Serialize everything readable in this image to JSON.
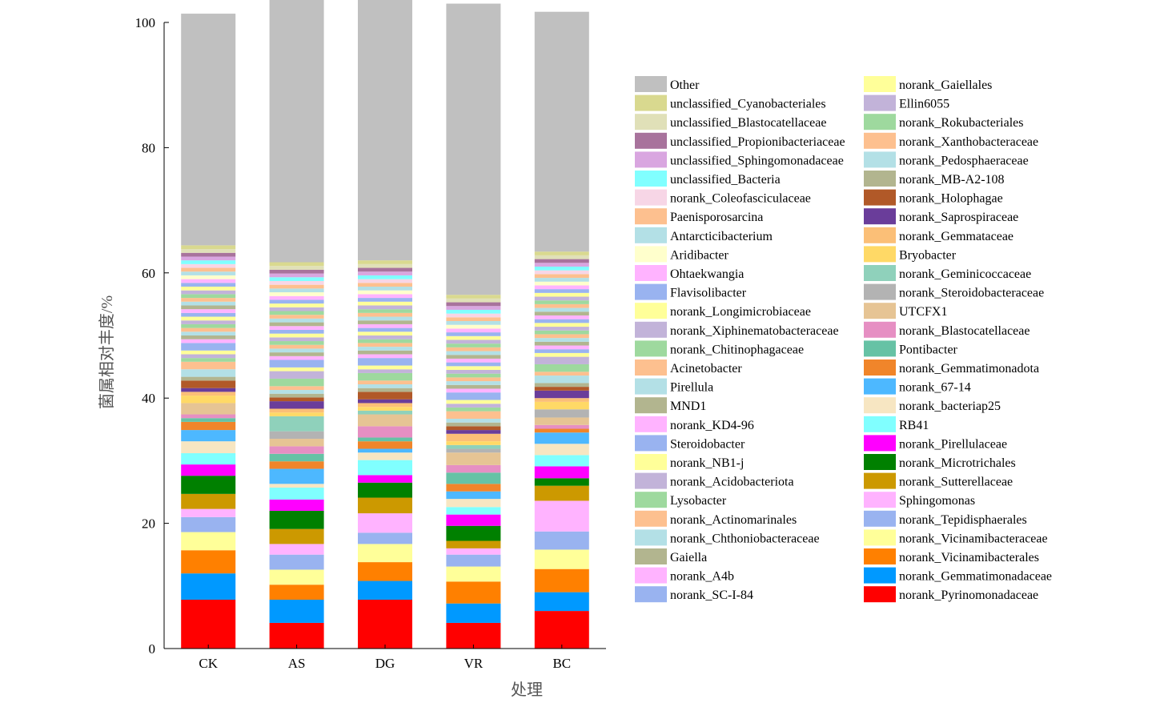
{
  "chart_data": {
    "type": "bar",
    "stacked": true,
    "xlabel": "处理",
    "ylabel": "菌属相对丰度/%",
    "ylim": [
      0,
      100
    ],
    "yticks": [
      0,
      20,
      40,
      60,
      80,
      100
    ],
    "categories": [
      "CK",
      "AS",
      "DG",
      "VR",
      "BC"
    ],
    "legend_position": "right",
    "series": [
      {
        "name": "norank_Pyrinomonadaceae",
        "color": "#ff0000",
        "values": [
          7.8,
          4.1,
          7.8,
          4.1,
          6.0
        ]
      },
      {
        "name": "norank_Gemmatimonadaceae",
        "color": "#0099ff",
        "values": [
          4.2,
          3.7,
          3.0,
          3.1,
          3.0
        ]
      },
      {
        "name": "norank_Vicinamibacterales",
        "color": "#ff8000",
        "values": [
          3.7,
          2.4,
          3.0,
          3.5,
          3.7
        ]
      },
      {
        "name": "norank_Vicinamibacteraceae",
        "color": "#ffff99",
        "values": [
          2.9,
          2.4,
          2.9,
          2.4,
          3.1
        ]
      },
      {
        "name": "norank_Tepidisphaerales",
        "color": "#99b3f0",
        "values": [
          2.4,
          2.4,
          1.8,
          1.9,
          2.9
        ]
      },
      {
        "name": "Sphingomonas",
        "color": "#ffb3ff",
        "values": [
          1.3,
          1.7,
          3.1,
          1.0,
          4.9
        ]
      },
      {
        "name": "norank_Sutterellaceae",
        "color": "#cc9900",
        "values": [
          2.4,
          2.4,
          2.5,
          1.2,
          2.4
        ]
      },
      {
        "name": "norank_Microtrichales",
        "color": "#008000",
        "values": [
          2.9,
          2.9,
          2.4,
          2.4,
          1.2
        ]
      },
      {
        "name": "norank_Pirellulaceae",
        "color": "#ff00ff",
        "values": [
          1.8,
          1.8,
          1.2,
          1.8,
          1.9
        ]
      },
      {
        "name": "RB41",
        "color": "#80ffff",
        "values": [
          1.8,
          1.9,
          2.4,
          1.2,
          1.8
        ]
      },
      {
        "name": "norank_bacteriap25",
        "color": "#f7e6c2",
        "values": [
          1.9,
          0.6,
          1.2,
          1.3,
          1.8
        ]
      },
      {
        "name": "norank_67-14",
        "color": "#4db8ff",
        "values": [
          1.8,
          2.4,
          0.6,
          1.2,
          1.8
        ]
      },
      {
        "name": "norank_Gemmatimonadota",
        "color": "#f0852a",
        "values": [
          1.3,
          1.2,
          1.2,
          1.2,
          0.6
        ]
      },
      {
        "name": "Pontibacter",
        "color": "#66c2a5",
        "values": [
          0.6,
          1.2,
          0.6,
          1.8,
          0.0
        ]
      },
      {
        "name": "norank_Blastocatellaceae",
        "color": "#e68fc3",
        "values": [
          0.6,
          1.2,
          1.8,
          1.2,
          0.6
        ]
      },
      {
        "name": "UTCFX1",
        "color": "#e6c494",
        "values": [
          1.8,
          1.2,
          1.9,
          2.0,
          1.2
        ]
      },
      {
        "name": "norank_Steroidobacteraceae",
        "color": "#b3b3b3",
        "values": [
          0.0,
          1.2,
          0.0,
          0.6,
          1.3
        ]
      },
      {
        "name": "norank_Geminicoccaceae",
        "color": "#8fd1bb",
        "values": [
          0.0,
          2.4,
          0.6,
          0.6,
          0.0
        ]
      },
      {
        "name": "Bryobacter",
        "color": "#ffd966",
        "values": [
          1.2,
          0.6,
          0.6,
          0.6,
          1.2
        ]
      },
      {
        "name": "norank_Gemmataceae",
        "color": "#fbbf77",
        "values": [
          0.6,
          0.6,
          0.6,
          1.2,
          0.6
        ]
      },
      {
        "name": "norank_Saprospiraceae",
        "color": "#6a3d9a",
        "values": [
          0.6,
          1.2,
          0.6,
          0.6,
          1.2
        ]
      },
      {
        "name": "norank_Holophagae",
        "color": "#b15928",
        "values": [
          1.2,
          0.6,
          1.2,
          0.6,
          0.6
        ]
      },
      {
        "name": "norank_MB-A2-108",
        "color": "#b2b58f",
        "values": [
          0.6,
          0.6,
          0.6,
          0.6,
          0.6
        ]
      },
      {
        "name": "norank_Pedosphaeraceae",
        "color": "#b3e0e6",
        "values": [
          1.2,
          0.6,
          0.6,
          0.6,
          1.2
        ]
      },
      {
        "name": "norank_Xanthobacteraceae",
        "color": "#fdc08f",
        "values": [
          1.2,
          0.6,
          0.6,
          1.2,
          0.6
        ]
      },
      {
        "name": "norank_Rokubacteriales",
        "color": "#9ed99e",
        "values": [
          0.6,
          1.2,
          1.2,
          0.6,
          1.2
        ]
      },
      {
        "name": "Ellin6055",
        "color": "#c2b3d9",
        "values": [
          0.6,
          1.2,
          0.6,
          0.6,
          1.2
        ]
      },
      {
        "name": "norank_Gaiellales",
        "color": "#ffff99",
        "values": [
          0.6,
          0.6,
          0.6,
          0.6,
          0.6
        ]
      },
      {
        "name": "norank_SC-I-84",
        "color": "#99b3f0",
        "values": [
          1.2,
          1.2,
          1.2,
          1.2,
          0.6
        ]
      },
      {
        "name": "norank_A4b",
        "color": "#ffb3ff",
        "values": [
          0.6,
          0.6,
          0.6,
          0.6,
          0.6
        ]
      },
      {
        "name": "Gaiella",
        "color": "#b2b58f",
        "values": [
          0.6,
          0.6,
          0.6,
          0.6,
          0.6
        ]
      },
      {
        "name": "norank_Chthoniobacteraceae",
        "color": "#b3e0e6",
        "values": [
          0.6,
          0.6,
          0.6,
          0.6,
          0.6
        ]
      },
      {
        "name": "norank_Actinomarinales",
        "color": "#fdc08f",
        "values": [
          0.6,
          0.6,
          0.6,
          0.6,
          0.6
        ]
      },
      {
        "name": "Lysobacter",
        "color": "#9ed99e",
        "values": [
          0.6,
          0.6,
          0.6,
          0.6,
          0.6
        ]
      },
      {
        "name": "norank_Acidobacteriota",
        "color": "#c2b3d9",
        "values": [
          0.6,
          0.6,
          0.6,
          0.6,
          0.6
        ]
      },
      {
        "name": "norank_NB1-j",
        "color": "#ffff99",
        "values": [
          0.6,
          0.6,
          0.6,
          0.6,
          0.6
        ]
      },
      {
        "name": "Steroidobacter",
        "color": "#99b3f0",
        "values": [
          0.6,
          0.6,
          0.6,
          0.6,
          0.6
        ]
      },
      {
        "name": "norank_KD4-96",
        "color": "#ffb3ff",
        "values": [
          0.6,
          0.6,
          0.6,
          0.6,
          0.6
        ]
      },
      {
        "name": "MND1",
        "color": "#b2b58f",
        "values": [
          0.6,
          0.6,
          0.6,
          0.6,
          0.6
        ]
      },
      {
        "name": "Pirellula",
        "color": "#b3e0e6",
        "values": [
          0.6,
          0.6,
          0.6,
          0.6,
          0.6
        ]
      },
      {
        "name": "Acinetobacter",
        "color": "#fdc08f",
        "values": [
          0.6,
          0.6,
          0.6,
          0.6,
          0.6
        ]
      },
      {
        "name": "norank_Chitinophagaceae",
        "color": "#9ed99e",
        "values": [
          0.6,
          0.6,
          0.6,
          0.6,
          0.6
        ]
      },
      {
        "name": "norank_Xiphinematobacteraceae",
        "color": "#c2b3d9",
        "values": [
          0.6,
          0.6,
          0.6,
          0.6,
          0.6
        ]
      },
      {
        "name": "norank_Longimicrobiaceae",
        "color": "#ffff99",
        "values": [
          0.6,
          0.6,
          0.6,
          0.6,
          0.6
        ]
      },
      {
        "name": "Flavisolibacter",
        "color": "#99b3f0",
        "values": [
          0.6,
          0.6,
          0.6,
          0.6,
          0.6
        ]
      },
      {
        "name": "Ohtaekwangia",
        "color": "#ffb3ff",
        "values": [
          0.6,
          0.6,
          0.6,
          0.6,
          0.6
        ]
      },
      {
        "name": "Aridibacter",
        "color": "#ffffcc",
        "values": [
          0.6,
          0.6,
          0.6,
          0.6,
          0.6
        ]
      },
      {
        "name": "Antarcticibacterium",
        "color": "#b3e0e6",
        "values": [
          0.6,
          0.6,
          0.6,
          0.6,
          0.6
        ]
      },
      {
        "name": "Paenisporosarcina",
        "color": "#fdc08f",
        "values": [
          0.6,
          0.6,
          0.6,
          0.6,
          0.6
        ]
      },
      {
        "name": "norank_Coleofasciculaceae",
        "color": "#f7d6e6",
        "values": [
          0.6,
          0.6,
          0.6,
          0.6,
          0.6
        ]
      },
      {
        "name": "unclassified_Bacteria",
        "color": "#80ffff",
        "values": [
          0.6,
          0.6,
          0.6,
          0.6,
          0.6
        ]
      },
      {
        "name": "unclassified_Sphingomonadaceae",
        "color": "#d9a6e0",
        "values": [
          0.6,
          0.6,
          0.6,
          0.6,
          0.6
        ]
      },
      {
        "name": "unclassified_Propionibacteriaceae",
        "color": "#a8739c",
        "values": [
          0.6,
          0.6,
          0.6,
          0.6,
          0.6
        ]
      },
      {
        "name": "unclassified_Blastocatellaceae",
        "color": "#e0e0b8",
        "values": [
          0.6,
          0.6,
          0.6,
          0.6,
          0.6
        ]
      },
      {
        "name": "unclassified_Cyanobacteriales",
        "color": "#d9d98f",
        "values": [
          0.6,
          0.6,
          0.6,
          0.6,
          0.6
        ]
      },
      {
        "name": "Other",
        "color": "#c0c0c0",
        "values": [
          37.0,
          42.0,
          42.0,
          46.5,
          38.3
        ]
      }
    ],
    "legend_column1": [
      "Other",
      "unclassified_Cyanobacteriales",
      "unclassified_Blastocatellaceae",
      "unclassified_Propionibacteriaceae",
      "unclassified_Sphingomonadaceae",
      "unclassified_Bacteria",
      "norank_Coleofasciculaceae",
      "Paenisporosarcina",
      "Antarcticibacterium",
      "Aridibacter",
      "Ohtaekwangia",
      "Flavisolibacter",
      "norank_Longimicrobiaceae",
      "norank_Xiphinematobacteraceae",
      "norank_Chitinophagaceae",
      "Acinetobacter",
      "Pirellula",
      "MND1",
      "norank_KD4-96",
      "Steroidobacter",
      "norank_NB1-j",
      "norank_Acidobacteriota",
      "Lysobacter",
      "norank_Actinomarinales",
      "norank_Chthoniobacteraceae",
      "Gaiella",
      "norank_A4b",
      "norank_SC-I-84"
    ],
    "legend_column2": [
      "norank_Gaiellales",
      "Ellin6055",
      "norank_Rokubacteriales",
      "norank_Xanthobacteraceae",
      "norank_Pedosphaeraceae",
      "norank_MB-A2-108",
      "norank_Holophagae",
      "norank_Saprospiraceae",
      "norank_Gemmataceae",
      "Bryobacter",
      "norank_Geminicoccaceae",
      "norank_Steroidobacteraceae",
      "UTCFX1",
      "norank_Blastocatellaceae",
      "Pontibacter",
      "norank_Gemmatimonadota",
      "norank_67-14",
      "norank_bacteriap25",
      "RB41",
      "norank_Pirellulaceae",
      "norank_Microtrichales",
      "norank_Sutterellaceae",
      "Sphingomonas",
      "norank_Tepidisphaerales",
      "norank_Vicinamibacteraceae",
      "norank_Vicinamibacterales",
      "norank_Gemmatimonadaceae",
      "norank_Pyrinomonadaceae"
    ]
  }
}
